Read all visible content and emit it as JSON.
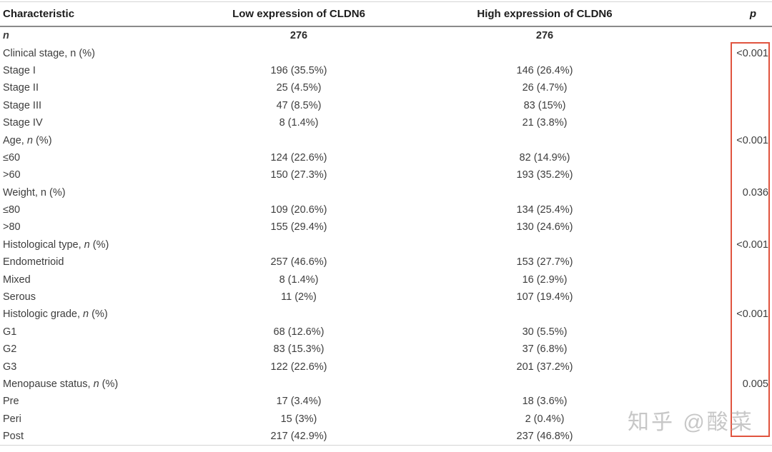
{
  "table": {
    "columns": [
      "Characteristic",
      "Low expression of CLDN6",
      "High expression of CLDN6",
      "p"
    ],
    "rows": [
      {
        "label": "n",
        "low": "276",
        "high": "276",
        "p": "",
        "label_style": "bold-italic",
        "value_style": "bold"
      },
      {
        "label": "Clinical stage, n (%)",
        "low": "",
        "high": "",
        "p": "<0.001"
      },
      {
        "label": "Stage I",
        "low": "196 (35.5%)",
        "high": "146 (26.4%)",
        "p": ""
      },
      {
        "label": "Stage II",
        "low": "25 (4.5%)",
        "high": "26 (4.7%)",
        "p": ""
      },
      {
        "label": "Stage III",
        "low": "47 (8.5%)",
        "high": "83 (15%)",
        "p": ""
      },
      {
        "label": "Stage IV",
        "low": "8 (1.4%)",
        "high": "21 (3.8%)",
        "p": ""
      },
      {
        "label": "Age, n (%)",
        "italic_n": true,
        "low": "",
        "high": "",
        "p": "<0.001"
      },
      {
        "label": "≤60",
        "low": "124 (22.6%)",
        "high": "82 (14.9%)",
        "p": ""
      },
      {
        "label": ">60",
        "low": "150 (27.3%)",
        "high": "193 (35.2%)",
        "p": ""
      },
      {
        "label": "Weight, n (%)",
        "low": "",
        "high": "",
        "p": "0.036"
      },
      {
        "label": "≤80",
        "low": "109 (20.6%)",
        "high": "134 (25.4%)",
        "p": ""
      },
      {
        "label": ">80",
        "low": "155 (29.4%)",
        "high": "130 (24.6%)",
        "p": ""
      },
      {
        "label": "Histological type, n (%)",
        "italic_n": true,
        "low": "",
        "high": "",
        "p": "<0.001"
      },
      {
        "label": "Endometrioid",
        "low": "257 (46.6%)",
        "high": "153 (27.7%)",
        "p": ""
      },
      {
        "label": "Mixed",
        "low": "8 (1.4%)",
        "high": "16 (2.9%)",
        "p": ""
      },
      {
        "label": "Serous",
        "low": "11 (2%)",
        "high": "107 (19.4%)",
        "p": ""
      },
      {
        "label": "Histologic grade, n (%)",
        "italic_n": true,
        "low": "",
        "high": "",
        "p": "<0.001"
      },
      {
        "label": "G1",
        "low": "68 (12.6%)",
        "high": "30 (5.5%)",
        "p": ""
      },
      {
        "label": "G2",
        "low": "83 (15.3%)",
        "high": "37 (6.8%)",
        "p": ""
      },
      {
        "label": "G3",
        "low": "122 (22.6%)",
        "high": "201 (37.2%)",
        "p": ""
      },
      {
        "label": "Menopause status, n (%)",
        "italic_n": true,
        "low": "",
        "high": "",
        "p": "0.005"
      },
      {
        "label": "Pre",
        "low": "17 (3.4%)",
        "high": "18 (3.6%)",
        "p": ""
      },
      {
        "label": "Peri",
        "low": "15 (3%)",
        "high": "2 (0.4%)",
        "p": ""
      },
      {
        "label": "Post",
        "low": "217 (42.9%)",
        "high": "237 (46.8%)",
        "p": ""
      }
    ]
  },
  "watermark": "知乎 @酸菜",
  "colors": {
    "highlight_box": "#e0543f",
    "body_text": "#3d3d3d",
    "header_text": "#1c1c1c"
  }
}
